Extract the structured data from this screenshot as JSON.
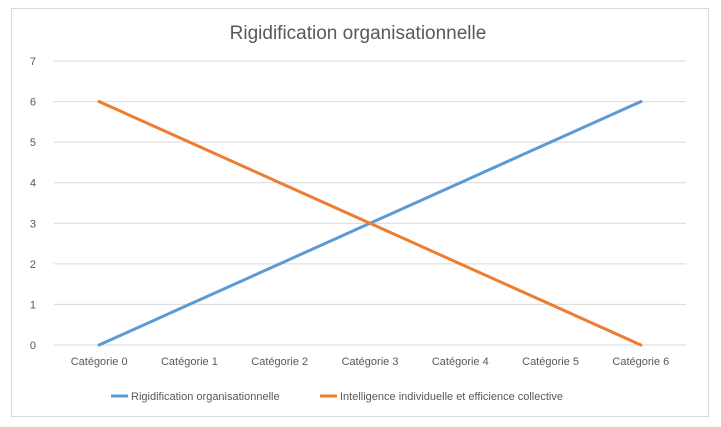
{
  "chart_data": {
    "type": "line",
    "title": "Rigidification organisationnelle",
    "categories": [
      "Catégorie 0",
      "Catégorie 1",
      "Catégorie 2",
      "Catégorie 3",
      "Catégorie 4",
      "Catégorie 5",
      "Catégorie 6"
    ],
    "series": [
      {
        "name": "Rigidification organisationnelle",
        "values": [
          0,
          1,
          2,
          3,
          4,
          5,
          6
        ],
        "color": "#5b9bd5"
      },
      {
        "name": "Intelligence individuelle et efficience collective",
        "values": [
          6,
          5,
          4,
          3,
          2,
          1,
          0
        ],
        "color": "#ed7d31"
      }
    ],
    "yticks": [
      "0",
      "1",
      "2",
      "3",
      "4",
      "5",
      "6",
      "7"
    ],
    "ylim": [
      0,
      7
    ],
    "grid": true,
    "legend": "bottom"
  }
}
